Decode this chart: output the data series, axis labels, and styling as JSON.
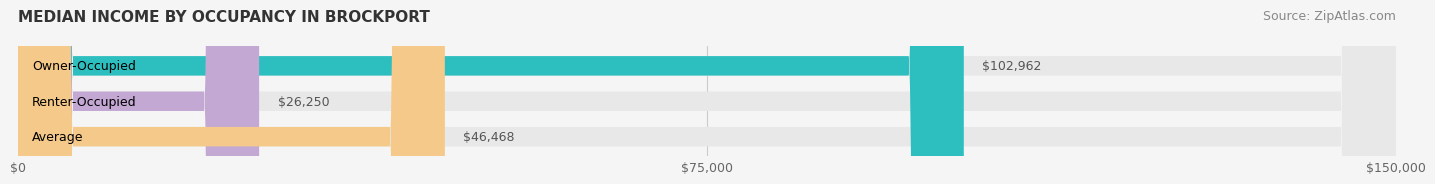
{
  "title": "MEDIAN INCOME BY OCCUPANCY IN BROCKPORT",
  "source": "Source: ZipAtlas.com",
  "categories": [
    "Owner-Occupied",
    "Renter-Occupied",
    "Average"
  ],
  "values": [
    102962,
    26250,
    46468
  ],
  "bar_colors": [
    "#2dbfbf",
    "#c4a8d4",
    "#f5c98a"
  ],
  "bar_bg_color": "#e8e8e8",
  "value_labels": [
    "$102,962",
    "$26,250",
    "$46,468"
  ],
  "xlim": [
    0,
    150000
  ],
  "xticks": [
    0,
    75000,
    150000
  ],
  "xtick_labels": [
    "$0",
    "$75,000",
    "$150,000"
  ],
  "title_fontsize": 11,
  "source_fontsize": 9,
  "label_fontsize": 9,
  "bar_label_fontsize": 9,
  "fig_bg_color": "#f5f5f5",
  "bar_bg_alpha": 1.0,
  "bar_height": 0.55
}
